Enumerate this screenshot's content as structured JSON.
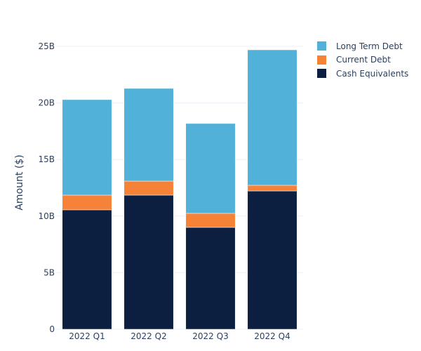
{
  "chart_data": {
    "type": "bar",
    "barmode": "stack",
    "title": "",
    "xlabel": "",
    "ylabel": "Amount ($)",
    "categories": [
      "2022 Q1",
      "2022 Q2",
      "2022 Q3",
      "2022 Q4"
    ],
    "ylim": [
      0,
      25
    ],
    "y_unit": "B",
    "yticks": [
      0,
      5,
      10,
      15,
      20,
      25
    ],
    "ytick_labels": [
      "0",
      "5B",
      "10B",
      "15B",
      "20B",
      "25B"
    ],
    "grid": true,
    "legend_position": "top-right",
    "series": [
      {
        "name": "Cash Equivalents",
        "color": "#0c1f40",
        "values": [
          10.55,
          11.85,
          9.0,
          12.22
        ]
      },
      {
        "name": "Current Debt",
        "color": "#f58237",
        "values": [
          1.3,
          1.24,
          1.24,
          0.5
        ]
      },
      {
        "name": "Long Term Debt",
        "color": "#52b1d9",
        "values": [
          8.44,
          8.19,
          7.94,
          11.97
        ]
      }
    ]
  },
  "legend": {
    "items": [
      {
        "label": "Long Term Debt",
        "color": "#52b1d9"
      },
      {
        "label": "Current Debt",
        "color": "#f58237"
      },
      {
        "label": "Cash Equivalents",
        "color": "#0c1f40"
      }
    ]
  }
}
